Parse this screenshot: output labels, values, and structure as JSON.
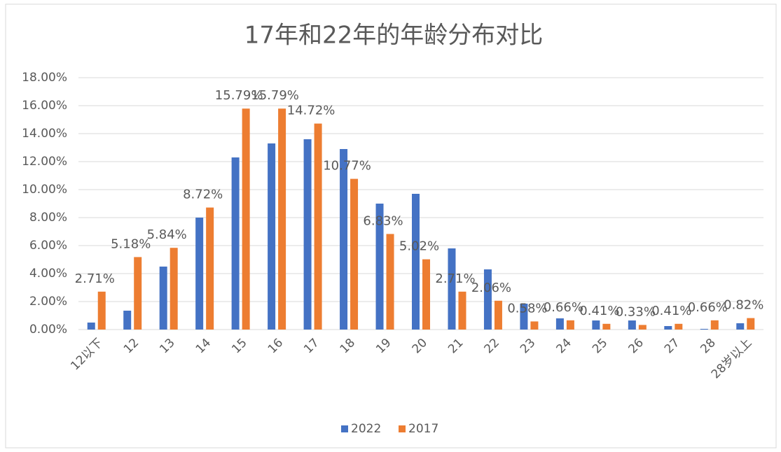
{
  "chart_data": {
    "type": "bar",
    "title": "17年和22年的年龄分布对比",
    "categories": [
      "12以下",
      "12",
      "13",
      "14",
      "15",
      "16",
      "17",
      "18",
      "19",
      "20",
      "21",
      "22",
      "23",
      "24",
      "25",
      "26",
      "27",
      "28",
      "28岁以上"
    ],
    "series": [
      {
        "name": "2022",
        "color": "#4472c4",
        "values": [
          0.5,
          1.35,
          4.5,
          8.0,
          12.3,
          13.3,
          13.6,
          12.9,
          9.0,
          9.7,
          5.8,
          4.3,
          1.85,
          0.8,
          0.65,
          0.65,
          0.25,
          0.05,
          0.45
        ]
      },
      {
        "name": "2017",
        "color": "#ed7d31",
        "values": [
          2.71,
          5.18,
          5.84,
          8.72,
          15.79,
          15.79,
          14.72,
          10.77,
          6.83,
          5.02,
          2.71,
          2.06,
          0.58,
          0.66,
          0.41,
          0.33,
          0.41,
          0.66,
          0.82
        ],
        "value_labels": [
          "2.71%",
          "5.18%",
          "5.84%",
          "8.72%",
          "15.79%",
          "15.79%",
          "14.72%",
          "10.77%",
          "6.83%",
          "5.02%",
          "2.71%",
          "2.06%",
          "0.58%",
          "0.66%",
          "0.41%",
          "0.33%",
          "0.41%",
          "0.66%",
          "0.82%"
        ]
      }
    ],
    "ylim": [
      0,
      18
    ],
    "yticks": [
      {
        "value": 0,
        "label": "0.00%"
      },
      {
        "value": 2,
        "label": "2.00%"
      },
      {
        "value": 4,
        "label": "4.00%"
      },
      {
        "value": 6,
        "label": "6.00%"
      },
      {
        "value": 8,
        "label": "8.00%"
      },
      {
        "value": 10,
        "label": "10.00%"
      },
      {
        "value": 12,
        "label": "12.00%"
      },
      {
        "value": 14,
        "label": "14.00%"
      },
      {
        "value": 16,
        "label": "16.00%"
      },
      {
        "value": 18,
        "label": "18.00%"
      }
    ],
    "grid": true,
    "legend": "bottom"
  }
}
